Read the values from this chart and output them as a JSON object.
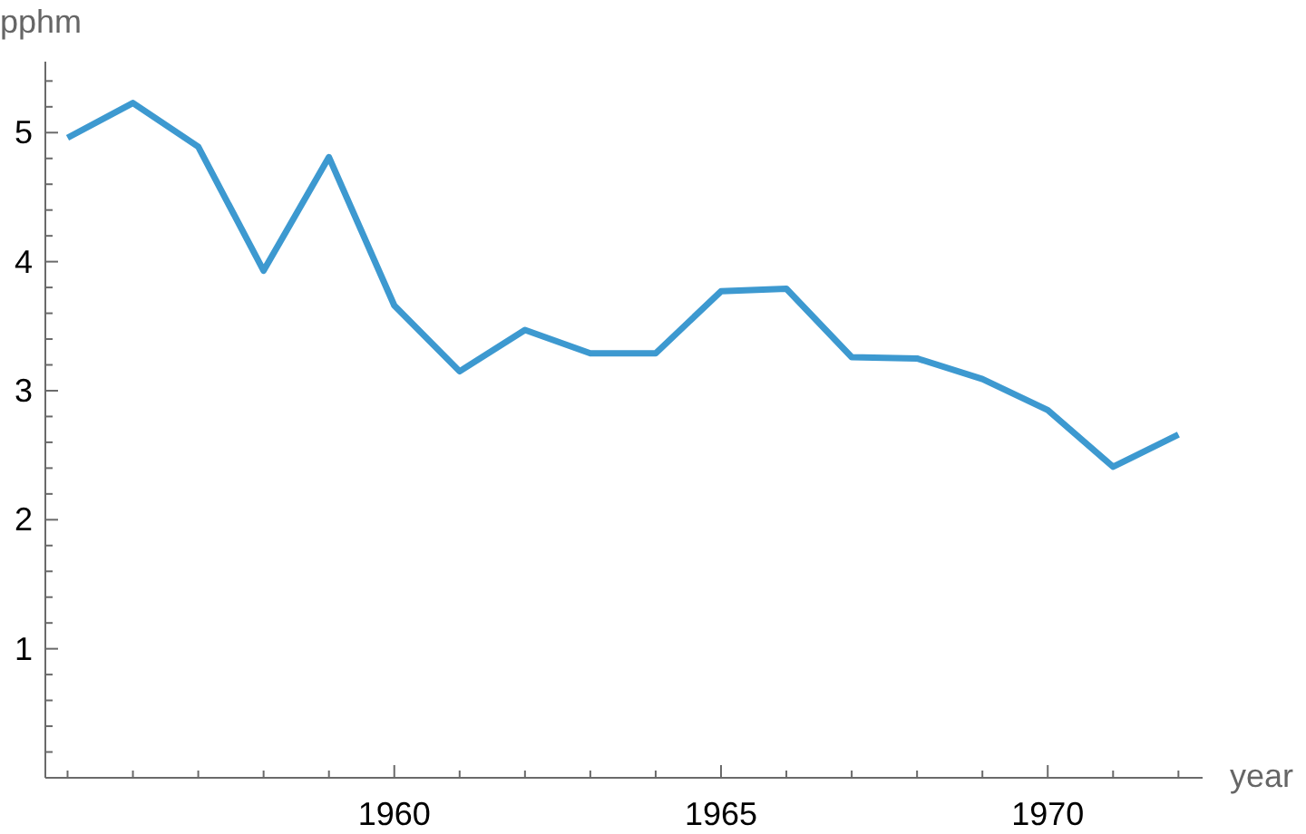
{
  "chart_data": {
    "type": "line",
    "xlabel": "year",
    "ylabel": "pphm",
    "x": [
      1955,
      1956,
      1957,
      1958,
      1959,
      1960,
      1961,
      1962,
      1963,
      1964,
      1965,
      1966,
      1967,
      1968,
      1969,
      1970,
      1971,
      1972
    ],
    "series": [
      {
        "color": "#3d99d0",
        "values": [
          4.96,
          5.23,
          4.89,
          3.93,
          4.81,
          3.66,
          3.15,
          3.47,
          3.29,
          3.29,
          3.77,
          3.79,
          3.26,
          3.25,
          3.09,
          2.85,
          2.41,
          2.66
        ]
      }
    ],
    "xlim": [
      1954.66,
      1972.37
    ],
    "ylim": [
      0,
      5.55
    ],
    "xticks": [
      {
        "value": 1955,
        "label": null
      },
      {
        "value": 1956,
        "label": null
      },
      {
        "value": 1957,
        "label": null
      },
      {
        "value": 1958,
        "label": null
      },
      {
        "value": 1959,
        "label": null
      },
      1960,
      {
        "value": 1961,
        "label": null
      },
      {
        "value": 1962,
        "label": null
      },
      {
        "value": 1963,
        "label": null
      },
      {
        "value": 1964,
        "label": null
      },
      1965,
      {
        "value": 1966,
        "label": null
      },
      {
        "value": 1967,
        "label": null
      },
      {
        "value": 1968,
        "label": null
      },
      {
        "value": 1969,
        "label": null
      },
      1970,
      {
        "value": 1971,
        "label": null
      },
      {
        "value": 1972,
        "label": null
      }
    ],
    "yticks": [
      {
        "value": 0.2,
        "label": null
      },
      {
        "value": 0.4,
        "label": null
      },
      {
        "value": 0.6,
        "label": null
      },
      {
        "value": 0.8,
        "label": null
      },
      1,
      {
        "value": 1.2,
        "label": null
      },
      {
        "value": 1.4,
        "label": null
      },
      {
        "value": 1.6,
        "label": null
      },
      {
        "value": 1.8,
        "label": null
      },
      2,
      {
        "value": 2.2,
        "label": null
      },
      {
        "value": 2.4,
        "label": null
      },
      {
        "value": 2.6,
        "label": null
      },
      {
        "value": 2.8,
        "label": null
      },
      3,
      {
        "value": 3.2,
        "label": null
      },
      {
        "value": 3.4,
        "label": null
      },
      {
        "value": 3.6,
        "label": null
      },
      {
        "value": 3.8,
        "label": null
      },
      4,
      {
        "value": 4.2,
        "label": null
      },
      {
        "value": 4.4,
        "label": null
      },
      {
        "value": 4.6,
        "label": null
      },
      {
        "value": 4.8,
        "label": null
      },
      5,
      {
        "value": 5.2,
        "label": null
      },
      {
        "value": 5.4,
        "label": null
      }
    ],
    "marker": "none",
    "line_style": "solid"
  }
}
